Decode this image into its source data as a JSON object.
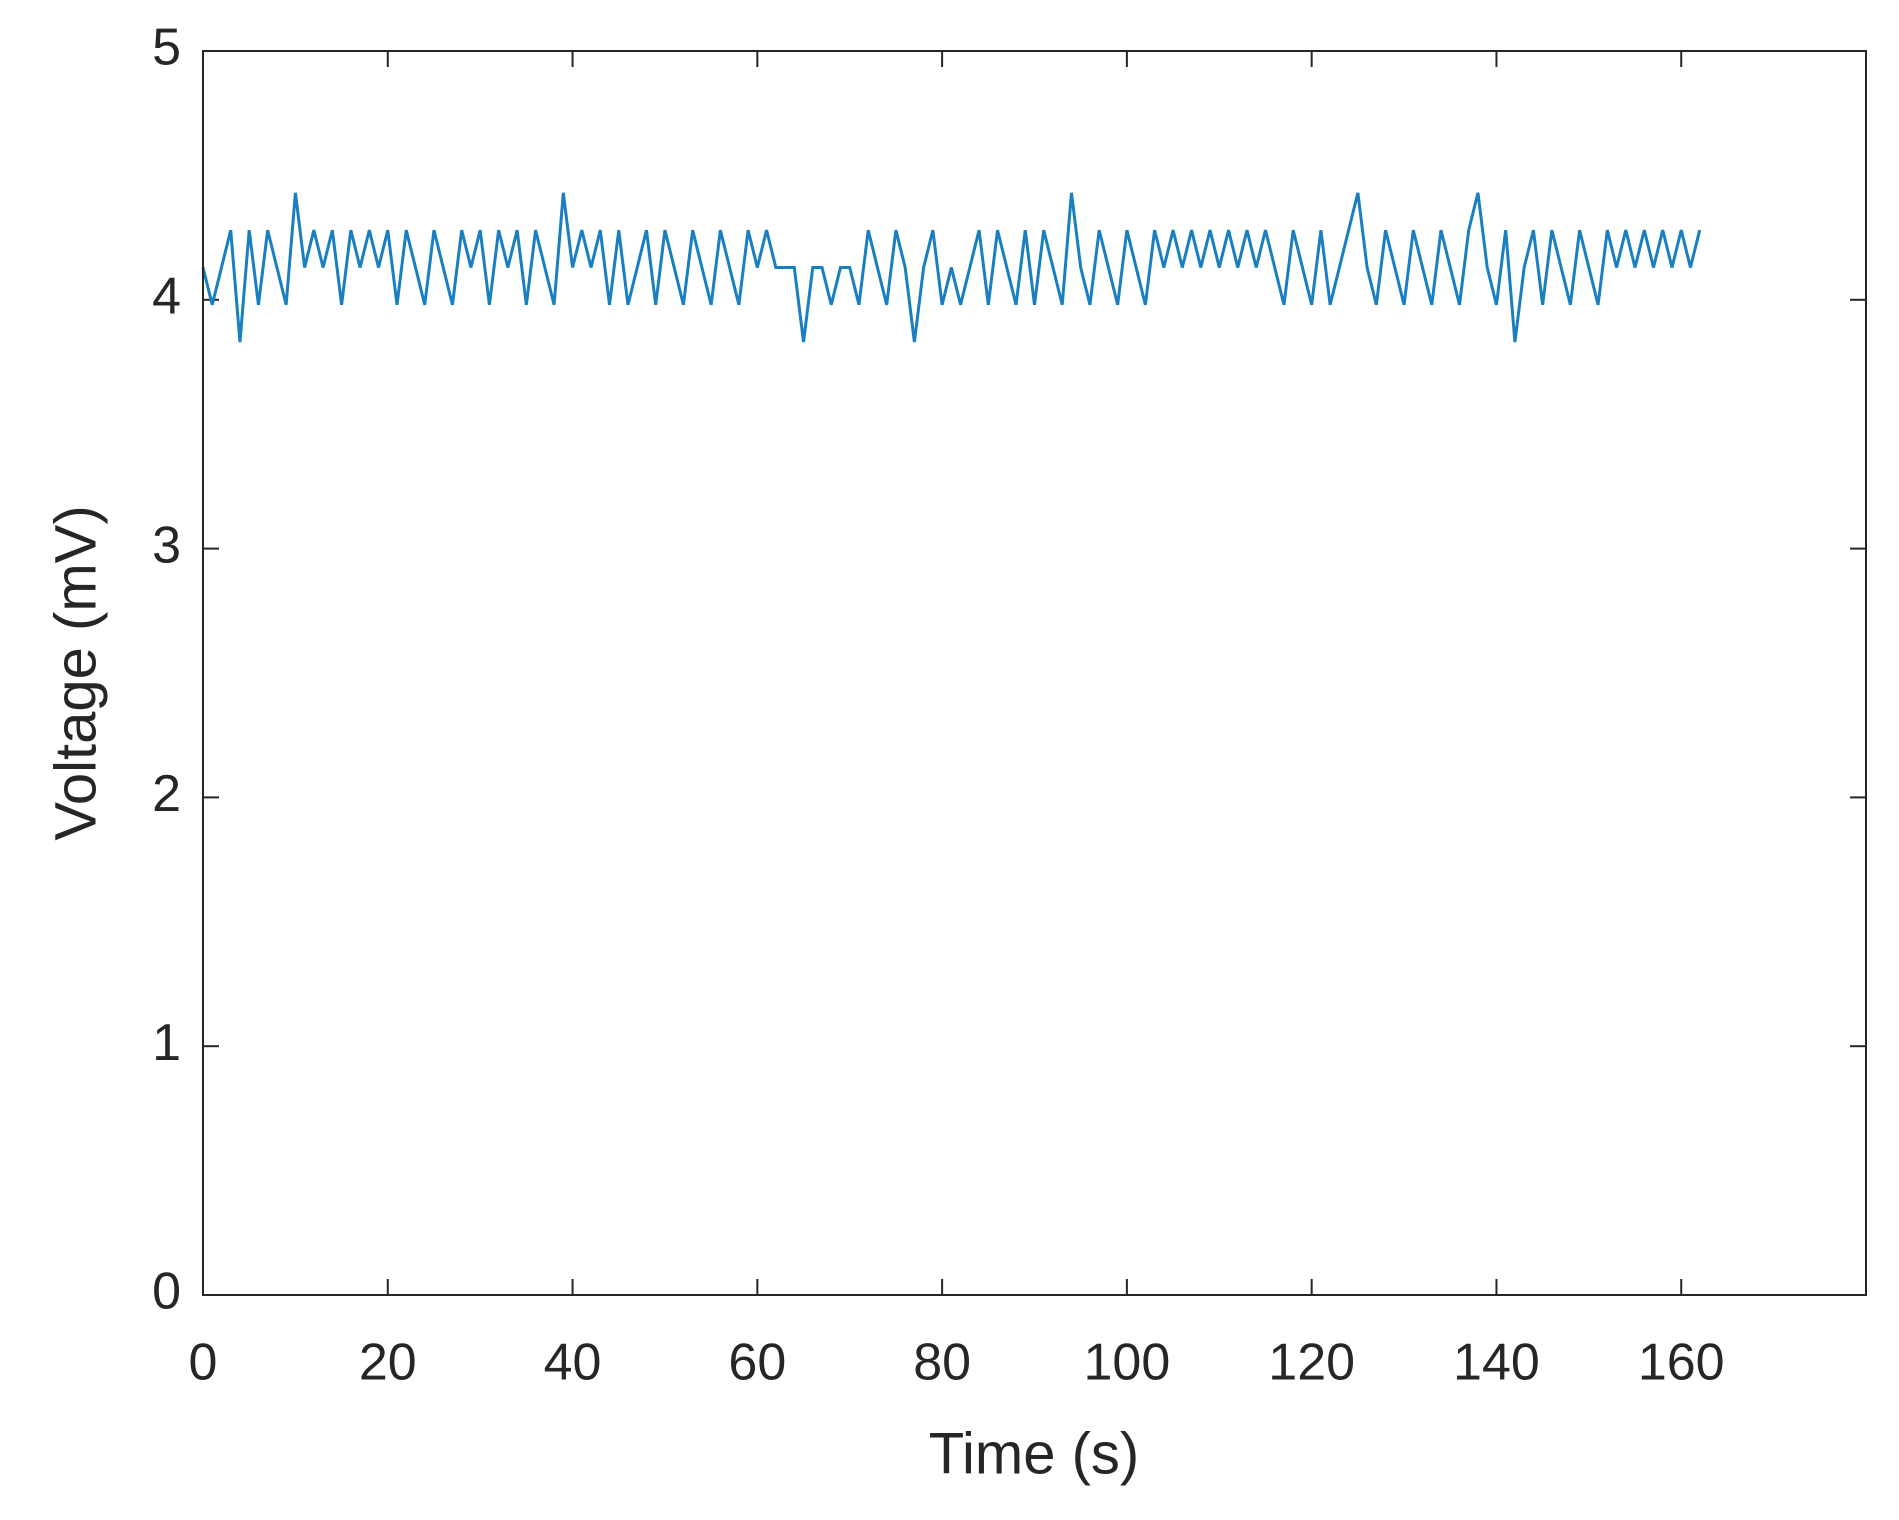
{
  "chart_data": {
    "type": "line",
    "xlabel": "Time (s)",
    "ylabel": "Voltage (mV)",
    "xlim": [
      0,
      180
    ],
    "ylim": [
      0,
      5
    ],
    "xticks": [
      0,
      20,
      40,
      60,
      80,
      100,
      120,
      140,
      160
    ],
    "yticks": [
      0,
      1,
      2,
      3,
      4,
      5
    ],
    "x": [
      0,
      1,
      2,
      3,
      4,
      5,
      6,
      7,
      8,
      9,
      10,
      11,
      12,
      13,
      14,
      15,
      16,
      17,
      18,
      19,
      20,
      21,
      22,
      23,
      24,
      25,
      26,
      27,
      28,
      29,
      30,
      31,
      32,
      33,
      34,
      35,
      36,
      37,
      38,
      39,
      40,
      41,
      42,
      43,
      44,
      45,
      46,
      47,
      48,
      49,
      50,
      51,
      52,
      53,
      54,
      55,
      56,
      57,
      58,
      59,
      60,
      61,
      62,
      63,
      64,
      65,
      66,
      67,
      68,
      69,
      70,
      71,
      72,
      73,
      74,
      75,
      76,
      77,
      78,
      79,
      80,
      81,
      82,
      83,
      84,
      85,
      86,
      87,
      88,
      89,
      90,
      91,
      92,
      93,
      94,
      95,
      96,
      97,
      98,
      99,
      100,
      101,
      102,
      103,
      104,
      105,
      106,
      107,
      108,
      109,
      110,
      111,
      112,
      113,
      114,
      115,
      116,
      117,
      118,
      119,
      120,
      121,
      122,
      123,
      124,
      125,
      126,
      127,
      128,
      129,
      130,
      131,
      132,
      133,
      134,
      135,
      136,
      137,
      138,
      139,
      140,
      141,
      142,
      143,
      144,
      145,
      146,
      147,
      148,
      149,
      150,
      151,
      152,
      153,
      154,
      155,
      156,
      157,
      158,
      159,
      160,
      161,
      162
    ],
    "series": [
      {
        "color": "#1a7fc1",
        "values": [
          4.13,
          3.98,
          4.13,
          4.28,
          3.83,
          4.28,
          3.98,
          4.28,
          4.13,
          3.98,
          4.43,
          4.13,
          4.28,
          4.13,
          4.28,
          3.98,
          4.28,
          4.13,
          4.28,
          4.13,
          4.28,
          3.98,
          4.28,
          4.13,
          3.98,
          4.28,
          4.13,
          3.98,
          4.28,
          4.13,
          4.28,
          3.98,
          4.28,
          4.13,
          4.28,
          3.98,
          4.28,
          4.13,
          3.98,
          4.43,
          4.13,
          4.28,
          4.13,
          4.28,
          3.98,
          4.28,
          3.98,
          4.13,
          4.28,
          3.98,
          4.28,
          4.13,
          3.98,
          4.28,
          4.13,
          3.98,
          4.28,
          4.13,
          3.98,
          4.28,
          4.13,
          4.28,
          4.13,
          4.13,
          4.13,
          3.83,
          4.13,
          4.13,
          3.98,
          4.13,
          4.13,
          3.98,
          4.28,
          4.13,
          3.98,
          4.28,
          4.13,
          3.83,
          4.13,
          4.28,
          3.98,
          4.13,
          3.98,
          4.13,
          4.28,
          3.98,
          4.28,
          4.13,
          3.98,
          4.28,
          3.98,
          4.28,
          4.13,
          3.98,
          4.43,
          4.13,
          3.98,
          4.28,
          4.13,
          3.98,
          4.28,
          4.13,
          3.98,
          4.28,
          4.13,
          4.28,
          4.13,
          4.28,
          4.13,
          4.28,
          4.13,
          4.28,
          4.13,
          4.28,
          4.13,
          4.28,
          4.13,
          3.98,
          4.28,
          4.13,
          3.98,
          4.28,
          3.98,
          4.13,
          4.28,
          4.43,
          4.13,
          3.98,
          4.28,
          4.13,
          3.98,
          4.28,
          4.13,
          3.98,
          4.28,
          4.13,
          3.98,
          4.28,
          4.43,
          4.13,
          3.98,
          4.28,
          3.83,
          4.13,
          4.28,
          3.98,
          4.28,
          4.13,
          3.98,
          4.28,
          4.13,
          3.98,
          4.28,
          4.13,
          4.28,
          4.13,
          4.28,
          4.13,
          4.28,
          4.13,
          4.28,
          4.13,
          4.28
        ]
      }
    ]
  }
}
